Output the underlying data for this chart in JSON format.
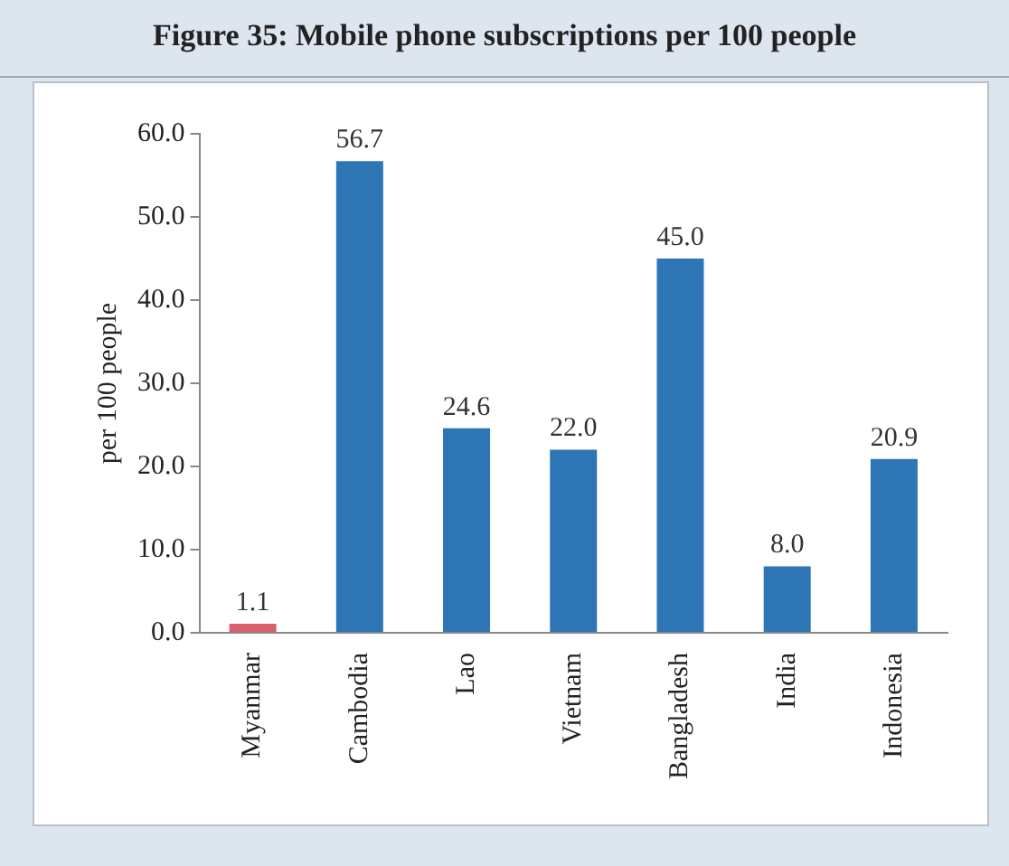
{
  "chart_data": {
    "type": "bar",
    "title": "Figure 35: Mobile phone subscriptions per 100 people",
    "ylabel": "per 100 people",
    "categories": [
      "Myanmar",
      "Cambodia",
      "Lao",
      "Vietnam",
      "Bangladesh",
      "India",
      "Indonesia"
    ],
    "values": [
      1.1,
      56.7,
      24.6,
      22.0,
      45.0,
      8.0,
      20.9
    ],
    "colors": [
      "#d9606c",
      "#2e75b6",
      "#2e75b6",
      "#2e75b6",
      "#2e75b6",
      "#2e75b6",
      "#2e75b6"
    ],
    "value_labels": [
      "1.1",
      "56.7",
      "24.6",
      "22.0",
      "45.0",
      "8.0",
      "20.9"
    ],
    "ylim": [
      0,
      60
    ],
    "yticks": [
      {
        "value": 0,
        "label": "0.0"
      },
      {
        "value": 10,
        "label": "10.0"
      },
      {
        "value": 20,
        "label": "20.0"
      },
      {
        "value": 30,
        "label": "30.0"
      },
      {
        "value": 40,
        "label": "40.0"
      },
      {
        "value": 50,
        "label": "50.0"
      },
      {
        "value": 60,
        "label": "60.0"
      }
    ]
  }
}
